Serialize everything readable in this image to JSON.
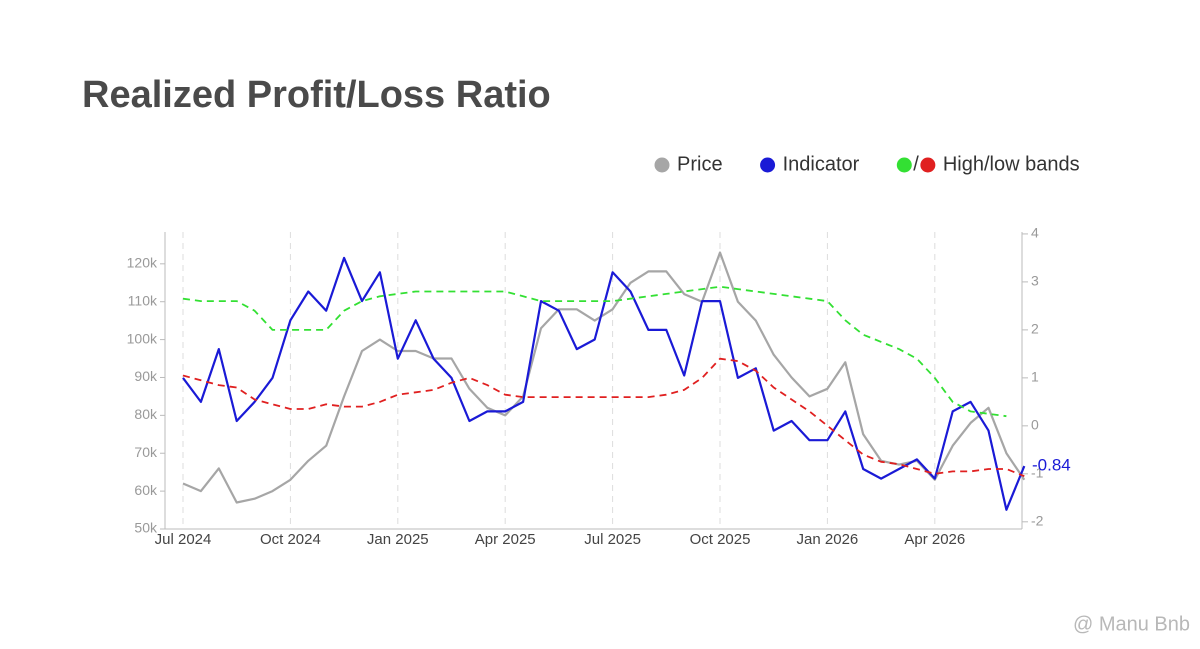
{
  "chart_data": {
    "type": "line",
    "title": "Realized Profit/Loss Ratio",
    "categories": [
      "Jul 2024",
      null,
      null,
      null,
      null,
      null,
      "Oct 2024",
      null,
      null,
      null,
      null,
      null,
      "Jan 2025",
      null,
      null,
      null,
      null,
      null,
      "Apr 2025",
      null,
      null,
      null,
      null,
      null,
      "Jul 2025",
      null,
      null,
      null,
      null,
      null,
      "Oct 2025",
      null,
      null,
      null,
      null,
      null,
      "Jan 2026",
      null,
      null,
      null,
      null,
      null,
      "Apr 2026",
      null,
      null,
      null,
      null,
      null
    ],
    "series": [
      {
        "name": "Price",
        "color": "#a6a6a6",
        "axis": "y",
        "values": [
          62000,
          60000,
          66000,
          57000,
          58000,
          60000,
          63000,
          68000,
          72000,
          85000,
          97000,
          100000,
          97000,
          97000,
          95000,
          95000,
          87000,
          82000,
          80000,
          85000,
          103000,
          108000,
          108000,
          105000,
          108000,
          115000,
          118000,
          118000,
          112000,
          110000,
          123000,
          110000,
          105000,
          96000,
          90000,
          85000,
          87000,
          94000,
          75000,
          68000,
          67000,
          68000,
          63000,
          72000,
          78000,
          82000,
          70000,
          63000
        ]
      },
      {
        "name": "Indicator",
        "color": "#1a1ad6",
        "axis": "y2",
        "values": [
          1.0,
          0.5,
          1.6,
          0.1,
          0.5,
          1.0,
          2.2,
          2.8,
          2.4,
          3.5,
          2.6,
          3.2,
          1.4,
          2.2,
          1.4,
          1.0,
          0.1,
          0.3,
          0.3,
          0.5,
          2.6,
          2.4,
          1.6,
          1.8,
          3.2,
          2.8,
          2.0,
          2.0,
          1.05,
          2.6,
          2.6,
          1.0,
          1.2,
          -0.1,
          0.1,
          -0.3,
          -0.3,
          0.3,
          -0.9,
          -1.1,
          -0.9,
          -0.7,
          -1.1,
          0.3,
          0.5,
          -0.1,
          -1.75,
          -0.84
        ]
      },
      {
        "color": "#33e033",
        "axis": "y2",
        "dashed": true,
        "values": [
          2.65,
          2.6,
          2.6,
          2.6,
          2.4,
          2.0,
          2.0,
          2.0,
          2.0,
          2.4,
          2.6,
          2.7,
          2.75,
          2.8,
          2.8,
          2.8,
          2.8,
          2.8,
          2.8,
          2.7,
          2.6,
          2.6,
          2.6,
          2.6,
          2.6,
          2.65,
          2.7,
          2.75,
          2.8,
          2.85,
          2.9,
          2.85,
          2.8,
          2.75,
          2.7,
          2.65,
          2.6,
          2.2,
          1.9,
          1.75,
          1.6,
          1.4,
          1.0,
          0.5,
          0.3,
          0.25,
          0.2,
          null
        ]
      },
      {
        "color": "#e02020",
        "axis": "y2",
        "dashed": true,
        "values": [
          1.05,
          0.95,
          0.85,
          0.8,
          0.55,
          0.45,
          0.35,
          0.35,
          0.45,
          0.4,
          0.4,
          0.5,
          0.65,
          0.7,
          0.75,
          0.9,
          1.0,
          0.85,
          0.65,
          0.6,
          0.6,
          0.6,
          0.6,
          0.6,
          0.6,
          0.6,
          0.6,
          0.65,
          0.75,
          1.0,
          1.4,
          1.35,
          1.15,
          0.8,
          0.55,
          0.3,
          0.0,
          -0.3,
          -0.6,
          -0.75,
          -0.8,
          -0.9,
          -1.0,
          -0.95,
          -0.95,
          -0.9,
          -0.9,
          -1.05
        ]
      }
    ],
    "bands_label": "High/low bands",
    "bands_separator": "/",
    "ylim": [
      50000,
      128400
    ],
    "yticks": [
      {
        "value": 50000,
        "label": "50k"
      },
      {
        "value": 60000,
        "label": "60k"
      },
      {
        "value": 70000,
        "label": "70k"
      },
      {
        "value": 80000,
        "label": "80k"
      },
      {
        "value": 90000,
        "label": "90k"
      },
      {
        "value": 100000,
        "label": "100k"
      },
      {
        "value": 110000,
        "label": "110k"
      },
      {
        "value": 120000,
        "label": "120k"
      }
    ],
    "y2lim": [
      -2.15,
      4.04
    ],
    "y2ticks": [
      -2,
      -1,
      0,
      1,
      2,
      3,
      4
    ],
    "annotation": "-0.84",
    "watermark": "@ Manu Bnb",
    "grid": true
  }
}
